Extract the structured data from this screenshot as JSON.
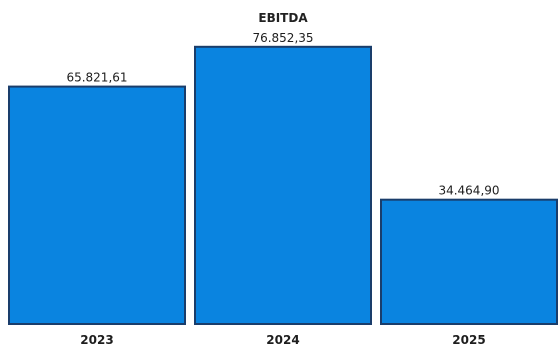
{
  "chart_data": {
    "type": "bar",
    "title": "EBITDA",
    "categories": [
      "2023",
      "2024",
      "2025"
    ],
    "values": [
      65821.61,
      76852.35,
      34464.9
    ],
    "data_labels": [
      "65.821,61",
      "76.852,35",
      "34.464,90"
    ],
    "xlabel": "",
    "ylabel": "",
    "ylim": [
      0,
      86500
    ],
    "legend": "none",
    "grid": false
  },
  "colors": {
    "bar_fill": "#0a84e0",
    "bar_edge": "#1a3d6b",
    "text": "#1e1e1e"
  }
}
